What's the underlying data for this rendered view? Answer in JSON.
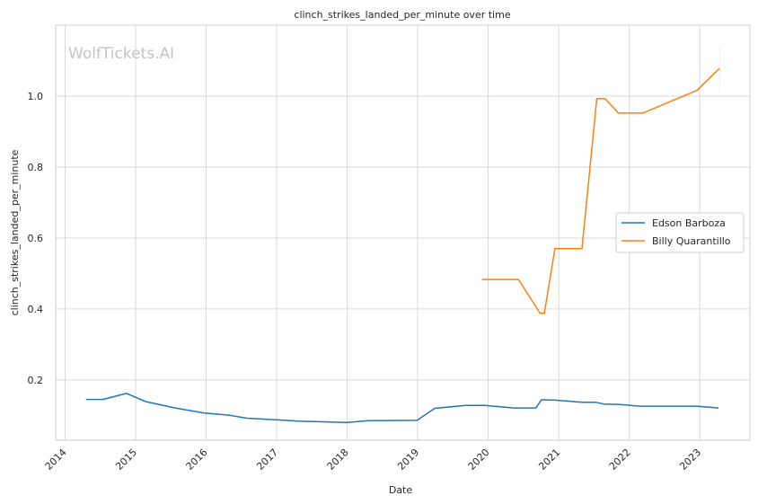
{
  "chart_data": {
    "type": "line",
    "title": "clinch_strikes_landed_per_minute over time",
    "xlabel": "Date",
    "ylabel": "clinch_strikes_landed_per_minute",
    "watermark": "WolfTickets.AI",
    "x_ticks": [
      "2014",
      "2015",
      "2016",
      "2017",
      "2018",
      "2019",
      "2020",
      "2021",
      "2022",
      "2023"
    ],
    "y_ticks": [
      "0.2",
      "0.4",
      "0.6",
      "0.8",
      "1.0"
    ],
    "xlim": [
      "2013-11-13",
      "2023-09-18"
    ],
    "ylim": [
      0.03,
      1.2
    ],
    "grid": true,
    "legend_position": "center-right",
    "series": [
      {
        "name": "Edson Barboza",
        "color": "#1f77b4",
        "points": [
          [
            "2014-04-19",
            0.145
          ],
          [
            "2014-07-15",
            0.145
          ],
          [
            "2014-11-15",
            0.162
          ],
          [
            "2015-02-22",
            0.139
          ],
          [
            "2015-07-25",
            0.121
          ],
          [
            "2015-12-19",
            0.107
          ],
          [
            "2016-04-23",
            0.101
          ],
          [
            "2016-07-30",
            0.092
          ],
          [
            "2017-02-19",
            0.086
          ],
          [
            "2017-04-22",
            0.084
          ],
          [
            "2017-12-30",
            0.08
          ],
          [
            "2018-04-21",
            0.085
          ],
          [
            "2018-12-29",
            0.086
          ],
          [
            "2019-03-30",
            0.12
          ],
          [
            "2019-09-07",
            0.128
          ],
          [
            "2019-12-14",
            0.128
          ],
          [
            "2020-05-13",
            0.121
          ],
          [
            "2020-09-05",
            0.121
          ],
          [
            "2020-10-03",
            0.144
          ],
          [
            "2020-12-12",
            0.143
          ],
          [
            "2021-05-01",
            0.137
          ],
          [
            "2021-07-10",
            0.137
          ],
          [
            "2021-08-21",
            0.132
          ],
          [
            "2021-11-06",
            0.131
          ],
          [
            "2022-02-26",
            0.126
          ],
          [
            "2022-12-17",
            0.126
          ],
          [
            "2023-04-08",
            0.121
          ]
        ]
      },
      {
        "name": "Billy Quarantillo",
        "color": "#ff7f0e",
        "points": [
          [
            "2019-11-30",
            0.483
          ],
          [
            "2020-06-06",
            0.483
          ],
          [
            "2020-09-26",
            0.388
          ],
          [
            "2020-10-18",
            0.388
          ],
          [
            "2020-12-12",
            0.57
          ],
          [
            "2021-05-01",
            0.57
          ],
          [
            "2021-07-17",
            0.993
          ],
          [
            "2021-08-28",
            0.993
          ],
          [
            "2021-11-06",
            0.952
          ],
          [
            "2022-03-12",
            0.952
          ],
          [
            "2022-12-17",
            1.016
          ],
          [
            "2023-04-15",
            1.079
          ]
        ]
      }
    ]
  }
}
